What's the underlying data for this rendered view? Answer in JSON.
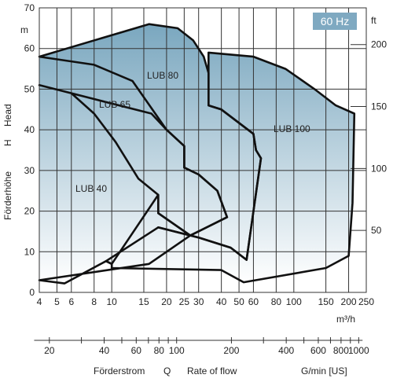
{
  "chart_data": {
    "type": "area",
    "badge": "60 Hz",
    "y_unit_left": "m",
    "y_unit_right": "ft",
    "x_unit_top": "m³/h",
    "y_axis_label_de": "Förderhöhe",
    "y_axis_symbol": "H",
    "y_axis_label_en": "Head",
    "x_axis_label_de": "Förderstrom",
    "x_axis_symbol": "Q",
    "x_axis_label_en": "Rate of flow",
    "x_unit_bottom": "G/min [US]",
    "x_scale": "log",
    "ylim_m": [
      0,
      70
    ],
    "xlim_m3h": [
      4,
      250
    ],
    "y_ticks_m": [
      "0",
      "10",
      "20",
      "30",
      "40",
      "50",
      "60",
      "70"
    ],
    "y_ticks_ft": [
      "50",
      "100",
      "150",
      "200"
    ],
    "x_ticks_m3h": [
      "4",
      "5",
      "6",
      "8",
      "10",
      "15",
      "20",
      "25",
      "30",
      "40",
      "50",
      "60",
      "80",
      "100",
      "150",
      "200",
      "250"
    ],
    "x_ticks_gpm": [
      "20",
      "40",
      "60",
      "80",
      "100",
      "200",
      "400",
      "600",
      "800",
      "1000"
    ],
    "grid": true,
    "series": [
      {
        "name": "LUB 40",
        "points": [
          [
            4,
            3
          ],
          [
            5.5,
            2.2
          ],
          [
            9.3,
            7.7
          ],
          [
            10,
            7
          ],
          [
            18,
            24
          ],
          [
            18,
            19.5
          ],
          [
            27,
            14
          ],
          [
            16,
            7
          ]
        ]
      },
      {
        "name": "LUB 65",
        "points": [
          [
            4,
            51
          ],
          [
            6,
            49
          ],
          [
            8,
            44
          ],
          [
            10.5,
            37
          ],
          [
            14,
            28
          ],
          [
            18,
            24
          ],
          [
            18,
            19.5
          ],
          [
            27,
            14
          ],
          [
            43,
            18.5
          ],
          [
            38,
            25
          ],
          [
            30,
            29
          ],
          [
            25,
            30.7
          ],
          [
            25,
            36
          ],
          [
            20,
            40
          ],
          [
            16.5,
            44
          ]
        ]
      },
      {
        "name": "LUB 80",
        "points": [
          [
            4,
            58
          ],
          [
            8,
            56
          ],
          [
            13,
            52
          ],
          [
            20,
            40
          ],
          [
            25,
            36
          ],
          [
            25,
            30.7
          ],
          [
            30,
            29
          ],
          [
            38,
            25
          ],
          [
            43,
            18.5
          ],
          [
            27,
            14
          ],
          [
            18,
            16
          ],
          [
            30,
            13.5
          ],
          [
            45,
            11
          ],
          [
            55,
            8
          ],
          [
            66,
            33
          ],
          [
            62,
            35
          ],
          [
            60,
            39
          ],
          [
            40,
            45
          ],
          [
            34,
            46
          ],
          [
            34,
            54
          ],
          [
            32,
            58
          ],
          [
            28,
            62
          ],
          [
            23,
            65
          ],
          [
            16,
            66
          ]
        ]
      },
      {
        "name": "LUB 100",
        "points": [
          [
            34,
            59
          ],
          [
            60,
            58
          ],
          [
            90,
            55
          ],
          [
            130,
            50
          ],
          [
            170,
            46
          ],
          [
            215,
            44
          ],
          [
            210,
            22
          ],
          [
            200,
            9
          ],
          [
            150,
            6
          ],
          [
            53,
            2.5
          ],
          [
            40,
            5.5
          ],
          [
            10,
            6
          ],
          [
            10,
            7
          ],
          [
            9.3,
            7.7
          ],
          [
            18,
            16
          ],
          [
            30,
            13.5
          ],
          [
            45,
            11
          ],
          [
            55,
            8
          ],
          [
            66,
            33
          ],
          [
            62,
            35
          ],
          [
            60,
            39
          ],
          [
            40,
            45
          ],
          [
            34,
            46
          ]
        ]
      }
    ],
    "curve_labels": [
      "LUB 40",
      "LUB 65",
      "LUB 80",
      "LUB 100"
    ]
  }
}
